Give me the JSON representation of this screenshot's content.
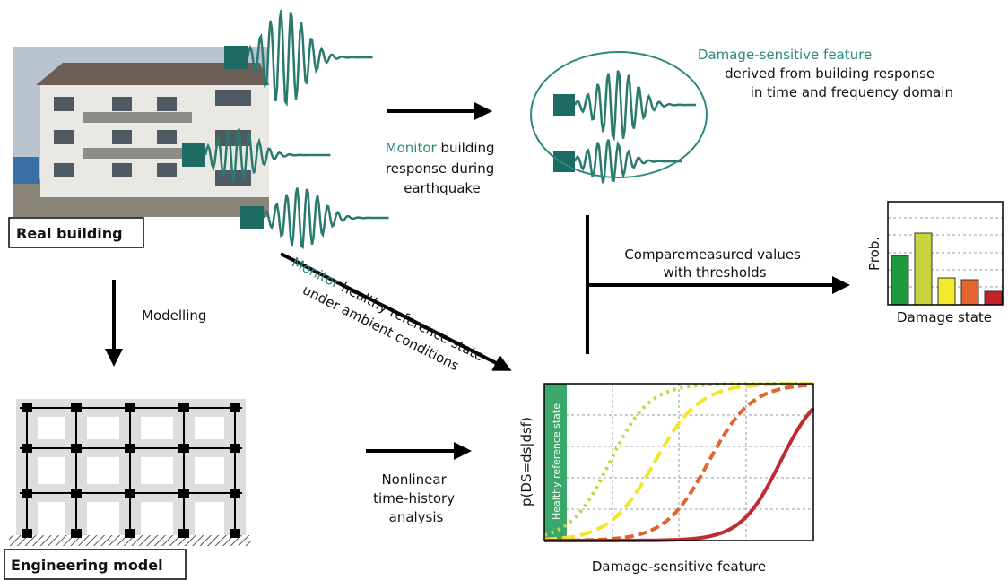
{
  "building": {
    "label": "Real building"
  },
  "model": {
    "label": "Engineering model"
  },
  "modelling": "Modelling",
  "monitor_response": {
    "highlight": "Monitor",
    "lines": [
      "building",
      "response during",
      "earthquake"
    ]
  },
  "feature": {
    "highlight": "Damage-sensitive feature",
    "lines": [
      "derived from building response",
      "in time and frequency domain"
    ]
  },
  "compare": {
    "lines": [
      "Comparemeasured values",
      "with thresholds"
    ]
  },
  "bar_chart": {
    "y_label": "Prob.",
    "x_label": "Damage state"
  },
  "monitor_healthy": {
    "highlight": "Monitor",
    "lines": [
      "healthy reference state",
      "under ambient conditions"
    ]
  },
  "analysis": {
    "lines": [
      "Nonlinear",
      "time-history",
      "analysis"
    ]
  },
  "fragility": {
    "y_label": "p(DS=ds|dsf)",
    "band_label": "Healthy reference state",
    "x_label": "Damage-sensitive feature"
  }
}
